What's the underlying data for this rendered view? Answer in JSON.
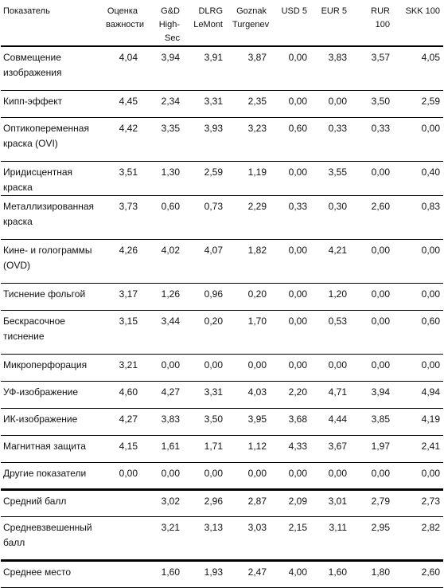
{
  "headers": [
    "Показатель",
    "Оценка важности",
    "G&D High-Sec",
    "DLRG LeMont",
    "Goznak Turgenev",
    "USD 5",
    "EUR 5",
    "RUR 100",
    "SKK 100"
  ],
  "rows": [
    {
      "label": "Совмещение изображения",
      "values": [
        "4,04",
        "3,94",
        "3,91",
        "3,87",
        "0,00",
        "3,83",
        "3,57",
        "4,05"
      ]
    },
    {
      "label": "Кипп-эффект",
      "values": [
        "4,45",
        "2,34",
        "3,31",
        "2,35",
        "0,00",
        "0,00",
        "3,50",
        "2,59"
      ]
    },
    {
      "label": "Оптикопеременная краска (OVI)",
      "values": [
        "4,42",
        "3,35",
        "3,93",
        "3,23",
        "0,60",
        "0,33",
        "0,33",
        "0,00"
      ]
    },
    {
      "label": "Иридисцентная краска",
      "values": [
        "3,51",
        "1,30",
        "2,59",
        "1,19",
        "0,00",
        "3,55",
        "0,00",
        "0,40"
      ]
    },
    {
      "label": "Металлизированная краска",
      "values": [
        "3,73",
        "0,60",
        "0,73",
        "2,29",
        "0,33",
        "0,30",
        "2,60",
        "0,83"
      ]
    },
    {
      "label": "Кине- и голограммы (OVD)",
      "values": [
        "4,26",
        "4,02",
        "4,07",
        "1,82",
        "0,00",
        "4,21",
        "0,00",
        "0,00"
      ]
    },
    {
      "label": "Тиснение фольгой",
      "values": [
        "3,17",
        "1,26",
        "0,96",
        "0,20",
        "0,00",
        "1,20",
        "0,00",
        "0,00"
      ]
    },
    {
      "label": "Бескрасочное тиснение",
      "values": [
        "3,15",
        "3,44",
        "0,20",
        "1,70",
        "0,00",
        "0,53",
        "0,00",
        "0,60"
      ]
    },
    {
      "label": "Микроперфорация",
      "values": [
        "3,21",
        "0,00",
        "0,00",
        "0,00",
        "0,00",
        "0,00",
        "0,00",
        "0,00"
      ]
    },
    {
      "label": "УФ-изображение",
      "values": [
        "4,60",
        "4,27",
        "3,31",
        "4,03",
        "2,20",
        "4,71",
        "3,94",
        "4,94"
      ]
    },
    {
      "label": "ИК-изображение",
      "values": [
        "4,27",
        "3,83",
        "3,50",
        "3,95",
        "3,68",
        "4,44",
        "3,85",
        "4,19"
      ]
    },
    {
      "label": "Магнитная защита",
      "values": [
        "4,15",
        "1,61",
        "1,71",
        "1,12",
        "4,33",
        "3,67",
        "1,97",
        "2,41"
      ]
    },
    {
      "label": "Другие показатели",
      "values": [
        "0,00",
        "0,00",
        "0,00",
        "0,00",
        "0,00",
        "0,00",
        "0,00",
        "0,00"
      ]
    }
  ],
  "summary": [
    {
      "label": "Средний балл",
      "values": [
        "",
        "3,02",
        "2,96",
        "2,87",
        "2,09",
        "3,01",
        "2,79",
        "2,73"
      ]
    },
    {
      "label": "Средневзвешенный балл",
      "values": [
        "",
        "3,21",
        "3,13",
        "3,03",
        "2,15",
        "3,11",
        "2,95",
        "2,82"
      ]
    },
    {
      "label": "Среднее место",
      "values": [
        "",
        "1,60",
        "1,93",
        "2,47",
        "4,00",
        "1,60",
        "1,80",
        "2,60"
      ]
    }
  ]
}
